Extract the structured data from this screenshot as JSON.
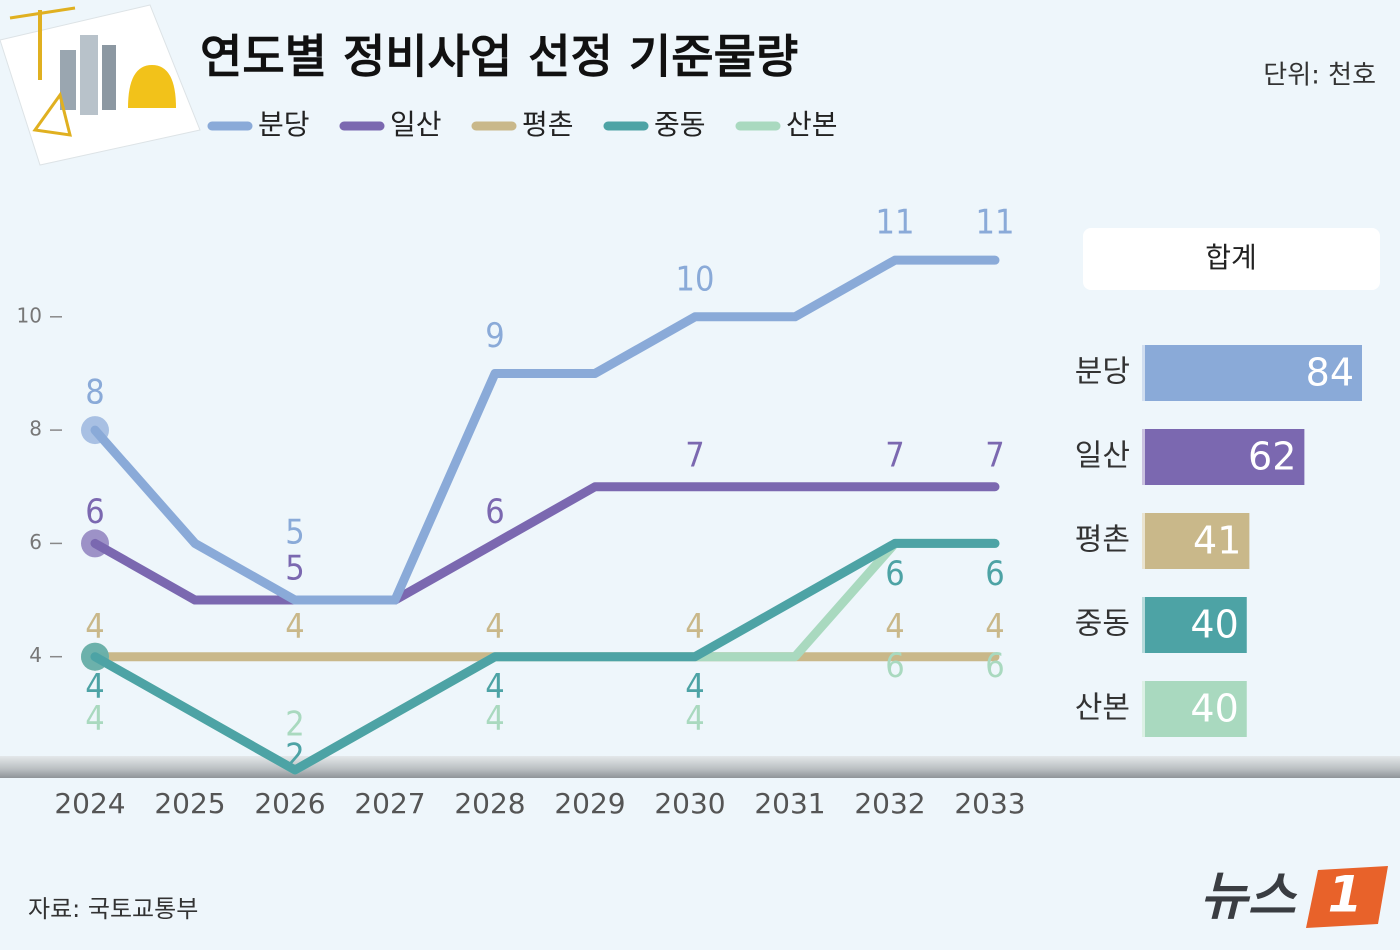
{
  "chart_data": [
    {
      "type": "line",
      "title": "연도별 정비사업 선정 기준물량",
      "unit_label": "단위: 천호",
      "source": "자료: 국토교통부",
      "categories": [
        "2024",
        "2025",
        "2026",
        "2027",
        "2028",
        "2029",
        "2030",
        "2031",
        "2032",
        "2033"
      ],
      "ylim": [
        2,
        12
      ],
      "yticks": [
        4,
        6,
        8,
        10
      ],
      "series": [
        {
          "name": "분당",
          "color": "#8aaad8",
          "values": [
            8,
            6,
            5,
            5,
            9,
            9,
            10,
            10,
            11,
            11
          ],
          "value_labels": [
            "8",
            null,
            "5",
            null,
            "9",
            null,
            "10",
            null,
            "11",
            "11"
          ]
        },
        {
          "name": "일산",
          "color": "#7b68b0",
          "values": [
            6,
            5,
            5,
            5,
            6,
            7,
            7,
            7,
            7,
            7
          ],
          "value_labels": [
            "6",
            null,
            "5",
            null,
            "6",
            null,
            "7",
            null,
            "7",
            "7"
          ]
        },
        {
          "name": "평촌",
          "color": "#c9b88a",
          "values": [
            4,
            4,
            4,
            4,
            4,
            4,
            4,
            4,
            4,
            4
          ],
          "value_labels": [
            "4",
            null,
            "4",
            null,
            "4",
            null,
            "4",
            null,
            "4",
            "4"
          ]
        },
        {
          "name": "중동",
          "color": "#4da3a5",
          "values": [
            4,
            3,
            2,
            3,
            4,
            4,
            4,
            5,
            6,
            6
          ],
          "value_labels": [
            "4",
            null,
            "2",
            null,
            "4",
            null,
            "4",
            null,
            "6",
            "6"
          ]
        },
        {
          "name": "산본",
          "color": "#a9d9bf",
          "values": [
            4,
            3,
            2,
            3,
            4,
            4,
            4,
            4,
            6,
            6
          ],
          "value_labels": [
            "4",
            null,
            "2",
            null,
            "4",
            null,
            "4",
            null,
            "6",
            "6"
          ]
        }
      ]
    },
    {
      "type": "bar",
      "orientation": "horizontal",
      "title": "합계",
      "categories": [
        "분당",
        "일산",
        "평촌",
        "중동",
        "산본"
      ],
      "values": [
        84,
        62,
        41,
        40,
        40
      ],
      "colors": [
        "#8aaad8",
        "#7b68b0",
        "#c9b88a",
        "#4da3a5",
        "#a9d9bf"
      ]
    }
  ],
  "logo": {
    "text": "뉴스",
    "mark": "1"
  }
}
